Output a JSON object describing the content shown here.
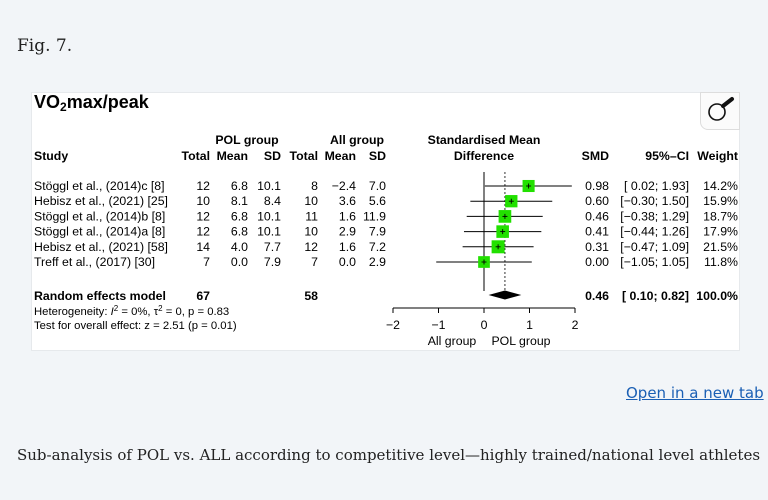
{
  "figure_label": "Fig. 7.",
  "figure_title_main": "VO",
  "figure_title_sub": "2",
  "figure_title_rest": "max/peak",
  "zoom_icon": "magnifier-icon",
  "link_text": "Open in a new tab",
  "caption": "Sub-analysis of POL vs. ALL according to competitive level—highly trained/national level athletes",
  "chart_data": {
    "type": "forest",
    "group_headers": {
      "pol": "POL group",
      "all": "All group"
    },
    "effect_header": [
      "Standardised Mean",
      "Difference"
    ],
    "columns": [
      "Study",
      "Total",
      "Mean",
      "SD",
      "Total",
      "Mean",
      "SD",
      "SMD",
      "95%–CI",
      "Weight"
    ],
    "studies": [
      {
        "study": "Stöggl et al., (2014)c [8]",
        "pol_total": "12",
        "pol_mean": "6.8",
        "pol_sd": "10.1",
        "all_total": "8",
        "all_mean": "−2.4",
        "all_sd": "7.0",
        "smd": 0.98,
        "ci_low": 0.02,
        "ci_high": 1.93,
        "smd_text": "0.98",
        "ci_text": "[ 0.02; 1.93]",
        "weight": "14.2%"
      },
      {
        "study": "Hebisz et al., (2021) [25]",
        "pol_total": "10",
        "pol_mean": "8.1",
        "pol_sd": "8.4",
        "all_total": "10",
        "all_mean": "3.6",
        "all_sd": "5.6",
        "smd": 0.6,
        "ci_low": -0.3,
        "ci_high": 1.5,
        "smd_text": "0.60",
        "ci_text": "[−0.30; 1.50]",
        "weight": "15.9%"
      },
      {
        "study": "Stöggl et al., (2014)b [8]",
        "pol_total": "12",
        "pol_mean": "6.8",
        "pol_sd": "10.1",
        "all_total": "11",
        "all_mean": "1.6",
        "all_sd": "11.9",
        "smd": 0.46,
        "ci_low": -0.38,
        "ci_high": 1.29,
        "smd_text": "0.46",
        "ci_text": "[−0.38; 1.29]",
        "weight": "18.7%"
      },
      {
        "study": "Stöggl et al., (2014)a [8]",
        "pol_total": "12",
        "pol_mean": "6.8",
        "pol_sd": "10.1",
        "all_total": "10",
        "all_mean": "2.9",
        "all_sd": "7.9",
        "smd": 0.41,
        "ci_low": -0.44,
        "ci_high": 1.26,
        "smd_text": "0.41",
        "ci_text": "[−0.44; 1.26]",
        "weight": "17.9%"
      },
      {
        "study": "Hebisz et al., (2021) [58]",
        "pol_total": "14",
        "pol_mean": "4.0",
        "pol_sd": "7.7",
        "all_total": "12",
        "all_mean": "1.6",
        "all_sd": "7.2",
        "smd": 0.31,
        "ci_low": -0.47,
        "ci_high": 1.09,
        "smd_text": "0.31",
        "ci_text": "[−0.47; 1.09]",
        "weight": "21.5%"
      },
      {
        "study": "Treff et al., (2017) [30]",
        "pol_total": "7",
        "pol_mean": "0.0",
        "pol_sd": "7.9",
        "all_total": "7",
        "all_mean": "0.0",
        "all_sd": "2.9",
        "smd": 0.0,
        "ci_low": -1.05,
        "ci_high": 1.05,
        "smd_text": "0.00",
        "ci_text": "[−1.05; 1.05]",
        "weight": "11.8%"
      }
    ],
    "summary": {
      "label": "Random effects model",
      "pol_total": "67",
      "all_total": "58",
      "smd": 0.46,
      "ci_low": 0.1,
      "ci_high": 0.82,
      "smd_text": "0.46",
      "ci_text": "[ 0.10; 0.82]",
      "weight": "100.0%"
    },
    "heterogeneity": {
      "prefix": "Heterogeneity: ",
      "I": "I",
      "sq": "2",
      "i_val": " = 0%, τ",
      "tau_sq": "2",
      "rest": " = 0, p = 0.83"
    },
    "overall_test": "Test for overall effect: z = 2.51 (p = 0.01)",
    "x_ticks": [
      -2,
      -1,
      0,
      1,
      2
    ],
    "x_tick_labels": [
      "−2",
      "−1",
      "0",
      "1",
      "2"
    ],
    "xlim": [
      -2,
      2
    ],
    "xlabel_left": "All group",
    "xlabel_right": "POL group",
    "marker_color": "#22e000"
  }
}
